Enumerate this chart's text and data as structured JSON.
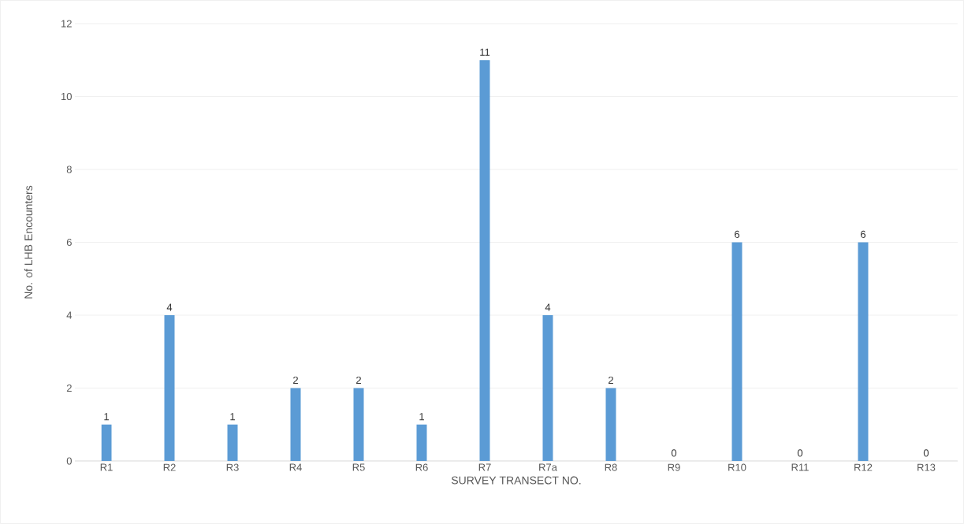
{
  "chart_data": {
    "type": "bar",
    "xlabel": "SURVEY TRANSECT NO.",
    "ylabel": "No. of LHB Encounters",
    "categories": [
      "R1",
      "R2",
      "R3",
      "R4",
      "R5",
      "R6",
      "R7",
      "R7a",
      "R8",
      "R9",
      "R10",
      "R11",
      "R12",
      "R13"
    ],
    "values": [
      1,
      4,
      1,
      2,
      2,
      1,
      11,
      4,
      2,
      0,
      6,
      0,
      6,
      0
    ],
    "color": "#5b9bd5",
    "ylim": [
      0,
      12
    ],
    "yticks": [
      0,
      2,
      4,
      6,
      8,
      10,
      12
    ],
    "grid": "y",
    "data_labels": true
  }
}
